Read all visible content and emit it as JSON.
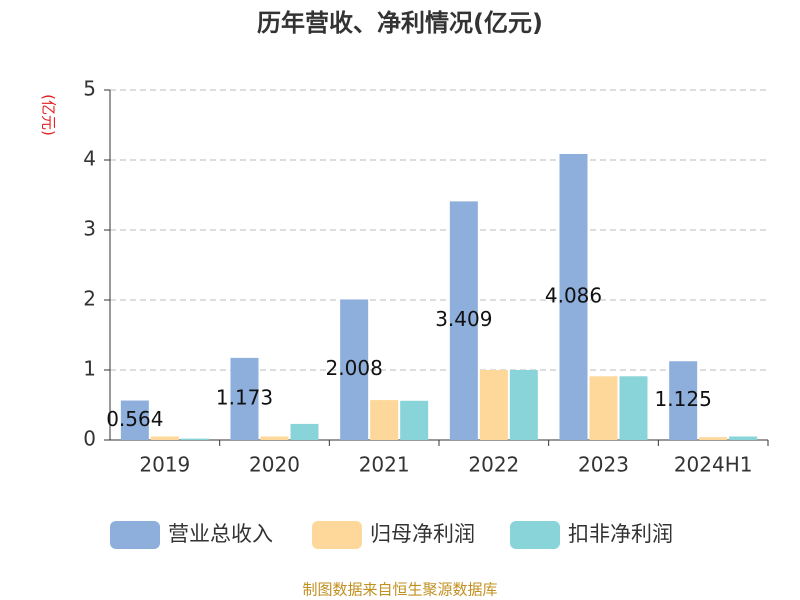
{
  "chart_data": {
    "type": "bar",
    "title": "历年营收、净利情况(亿元)",
    "y_unit": "(亿元)",
    "source": "制图数据来自恒生聚源数据库",
    "categories": [
      "2019",
      "2020",
      "2021",
      "2022",
      "2023",
      "2024H1"
    ],
    "series": [
      {
        "name": "营业总收入",
        "color": "#8eaedb",
        "values": [
          0.564,
          1.173,
          2.008,
          3.409,
          4.086,
          1.125
        ],
        "show_labels": true
      },
      {
        "name": "归母净利润",
        "color": "#fdd89a",
        "values": [
          0.05,
          0.05,
          0.57,
          1.0,
          0.91,
          0.04
        ]
      },
      {
        "name": "扣非净利润",
        "color": "#88d4d8",
        "values": [
          0.02,
          0.23,
          0.56,
          1.0,
          0.91,
          0.05
        ]
      }
    ],
    "ylim": [
      0,
      5
    ],
    "yticks": [
      0,
      1,
      2,
      3,
      4,
      5
    ],
    "grid": true
  }
}
